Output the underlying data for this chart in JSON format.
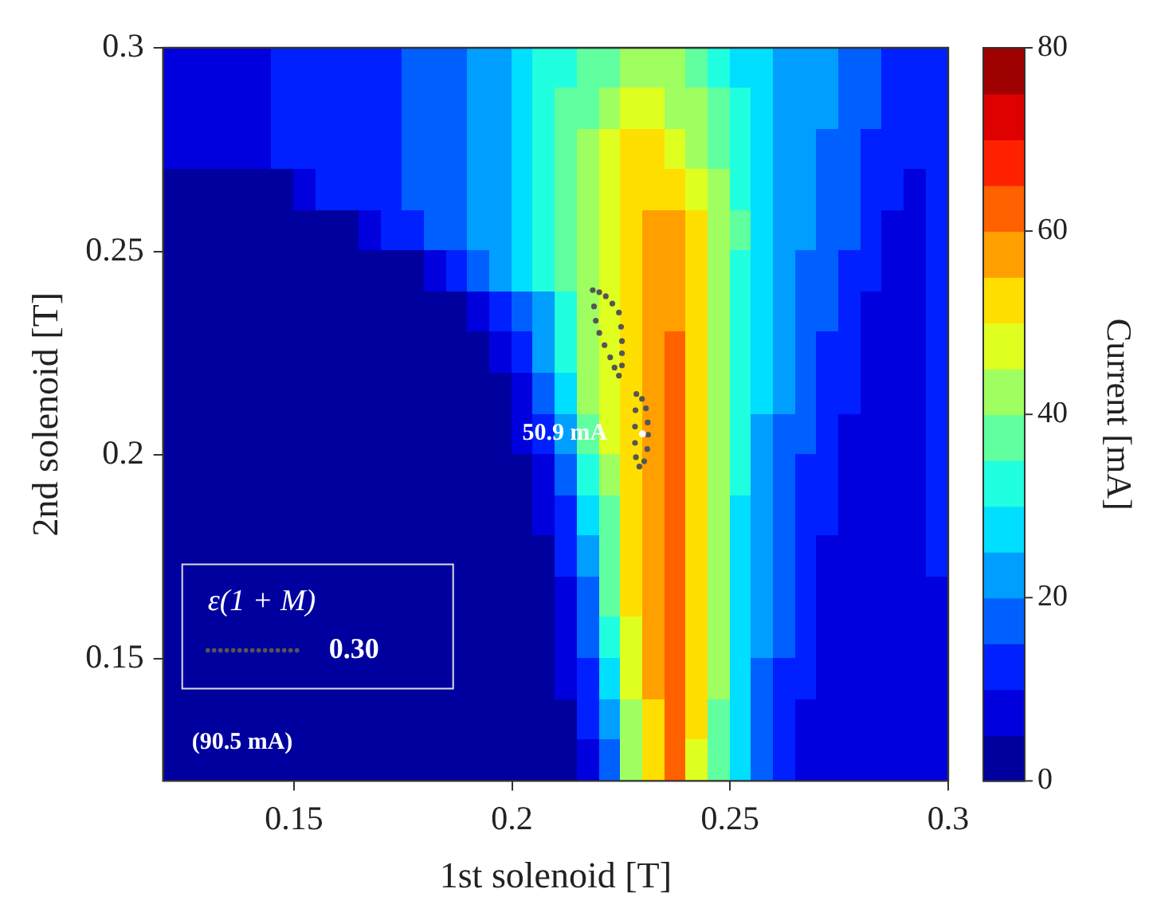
{
  "chart_data": {
    "type": "heatmap",
    "xlabel": "1st solenoid [T]",
    "ylabel": "2nd solenoid [T]",
    "clabel": "Current [mA]",
    "xlim": [
      0.12,
      0.3
    ],
    "ylim": [
      0.12,
      0.3
    ],
    "xticks": [
      0.15,
      0.2,
      0.25,
      0.3
    ],
    "yticks": [
      0.15,
      0.2,
      0.25,
      0.3
    ],
    "clim": [
      0,
      80
    ],
    "cticks": [
      0,
      20,
      40,
      60,
      80
    ],
    "cells": [
      [
        7.5,
        7.5,
        7.5,
        7.5,
        7.5,
        12.5,
        12.5,
        12.5,
        12.5,
        12.5,
        12.5,
        17.5,
        17.5,
        17.5,
        22.5,
        22.5,
        27.5,
        32.5,
        32.5,
        37.5,
        37.5,
        42.5,
        42.5,
        42.5,
        37.5,
        32.5,
        27.5,
        27.5,
        22.5,
        22.5,
        22.5,
        17.5,
        17.5,
        12.5,
        12.5,
        12.5
      ],
      [
        7.5,
        7.5,
        7.5,
        7.5,
        7.5,
        12.5,
        12.5,
        12.5,
        12.5,
        12.5,
        12.5,
        17.5,
        17.5,
        17.5,
        22.5,
        22.5,
        27.5,
        32.5,
        37.5,
        37.5,
        42.5,
        47.5,
        47.5,
        42.5,
        42.5,
        37.5,
        32.5,
        27.5,
        22.5,
        22.5,
        22.5,
        17.5,
        17.5,
        12.5,
        12.5,
        12.5
      ],
      [
        7.5,
        7.5,
        7.5,
        7.5,
        7.5,
        12.5,
        12.5,
        12.5,
        12.5,
        12.5,
        12.5,
        17.5,
        17.5,
        17.5,
        22.5,
        22.5,
        27.5,
        32.5,
        37.5,
        42.5,
        47.5,
        52.5,
        52.5,
        47.5,
        42.5,
        37.5,
        32.5,
        27.5,
        22.5,
        22.5,
        17.5,
        17.5,
        12.5,
        12.5,
        12.5,
        12.5
      ],
      [
        2.5,
        2.5,
        2.5,
        2.5,
        2.5,
        2.5,
        7.5,
        12.5,
        12.5,
        12.5,
        12.5,
        17.5,
        17.5,
        17.5,
        22.5,
        22.5,
        27.5,
        32.5,
        37.5,
        42.5,
        47.5,
        52.5,
        52.5,
        52.5,
        47.5,
        42.5,
        32.5,
        27.5,
        22.5,
        22.5,
        17.5,
        17.5,
        12.5,
        12.5,
        7.5,
        12.5
      ],
      [
        2.5,
        2.5,
        2.5,
        2.5,
        2.5,
        2.5,
        2.5,
        2.5,
        2.5,
        7.5,
        12.5,
        12.5,
        17.5,
        17.5,
        22.5,
        22.5,
        27.5,
        32.5,
        37.5,
        42.5,
        47.5,
        52.5,
        57.5,
        57.5,
        52.5,
        42.5,
        37.5,
        27.5,
        22.5,
        22.5,
        17.5,
        17.5,
        12.5,
        7.5,
        7.5,
        12.5
      ],
      [
        2.5,
        2.5,
        2.5,
        2.5,
        2.5,
        2.5,
        2.5,
        2.5,
        2.5,
        2.5,
        2.5,
        2.5,
        7.5,
        12.5,
        17.5,
        22.5,
        27.5,
        32.5,
        37.5,
        42.5,
        47.5,
        52.5,
        57.5,
        57.5,
        52.5,
        42.5,
        32.5,
        27.5,
        22.5,
        17.5,
        17.5,
        12.5,
        12.5,
        7.5,
        7.5,
        12.5
      ],
      [
        2.5,
        2.5,
        2.5,
        2.5,
        2.5,
        2.5,
        2.5,
        2.5,
        2.5,
        2.5,
        2.5,
        2.5,
        2.5,
        2.5,
        7.5,
        12.5,
        17.5,
        22.5,
        32.5,
        42.5,
        47.5,
        52.5,
        57.5,
        57.5,
        52.5,
        42.5,
        32.5,
        27.5,
        22.5,
        17.5,
        17.5,
        12.5,
        7.5,
        7.5,
        7.5,
        12.5
      ],
      [
        2.5,
        2.5,
        2.5,
        2.5,
        2.5,
        2.5,
        2.5,
        2.5,
        2.5,
        2.5,
        2.5,
        2.5,
        2.5,
        2.5,
        2.5,
        7.5,
        12.5,
        22.5,
        32.5,
        42.5,
        47.5,
        52.5,
        57.5,
        62.5,
        52.5,
        42.5,
        32.5,
        27.5,
        22.5,
        17.5,
        12.5,
        12.5,
        7.5,
        7.5,
        7.5,
        12.5
      ],
      [
        2.5,
        2.5,
        2.5,
        2.5,
        2.5,
        2.5,
        2.5,
        2.5,
        2.5,
        2.5,
        2.5,
        2.5,
        2.5,
        2.5,
        2.5,
        2.5,
        7.5,
        17.5,
        27.5,
        42.5,
        47.5,
        52.5,
        57.5,
        62.5,
        52.5,
        42.5,
        32.5,
        27.5,
        22.5,
        17.5,
        12.5,
        12.5,
        7.5,
        7.5,
        7.5,
        12.5
      ],
      [
        2.5,
        2.5,
        2.5,
        2.5,
        2.5,
        2.5,
        2.5,
        2.5,
        2.5,
        2.5,
        2.5,
        2.5,
        2.5,
        2.5,
        2.5,
        2.5,
        7.5,
        12.5,
        22.5,
        37.5,
        47.5,
        52.5,
        57.5,
        62.5,
        52.5,
        42.5,
        32.5,
        22.5,
        17.5,
        17.5,
        12.5,
        7.5,
        7.5,
        7.5,
        7.5,
        12.5
      ],
      [
        2.5,
        2.5,
        2.5,
        2.5,
        2.5,
        2.5,
        2.5,
        2.5,
        2.5,
        2.5,
        2.5,
        2.5,
        2.5,
        2.5,
        2.5,
        2.5,
        2.5,
        7.5,
        17.5,
        32.5,
        42.5,
        52.5,
        57.5,
        62.5,
        52.5,
        42.5,
        32.5,
        22.5,
        17.5,
        12.5,
        12.5,
        7.5,
        7.5,
        7.5,
        7.5,
        12.5
      ],
      [
        2.5,
        2.5,
        2.5,
        2.5,
        2.5,
        2.5,
        2.5,
        2.5,
        2.5,
        2.5,
        2.5,
        2.5,
        2.5,
        2.5,
        2.5,
        2.5,
        2.5,
        7.5,
        12.5,
        27.5,
        37.5,
        52.5,
        57.5,
        62.5,
        52.5,
        42.5,
        27.5,
        22.5,
        17.5,
        12.5,
        12.5,
        7.5,
        7.5,
        7.5,
        7.5,
        12.5
      ],
      [
        2.5,
        2.5,
        2.5,
        2.5,
        2.5,
        2.5,
        2.5,
        2.5,
        2.5,
        2.5,
        2.5,
        2.5,
        2.5,
        2.5,
        2.5,
        2.5,
        2.5,
        2.5,
        12.5,
        22.5,
        37.5,
        52.5,
        57.5,
        62.5,
        52.5,
        42.5,
        27.5,
        22.5,
        17.5,
        12.5,
        7.5,
        7.5,
        7.5,
        7.5,
        7.5,
        12.5
      ],
      [
        2.5,
        2.5,
        2.5,
        2.5,
        2.5,
        2.5,
        2.5,
        2.5,
        2.5,
        2.5,
        2.5,
        2.5,
        2.5,
        2.5,
        2.5,
        2.5,
        2.5,
        2.5,
        7.5,
        17.5,
        37.5,
        52.5,
        57.5,
        62.5,
        52.5,
        42.5,
        27.5,
        22.5,
        17.5,
        12.5,
        7.5,
        7.5,
        7.5,
        7.5,
        7.5,
        7.5
      ],
      [
        2.5,
        2.5,
        2.5,
        2.5,
        2.5,
        2.5,
        2.5,
        2.5,
        2.5,
        2.5,
        2.5,
        2.5,
        2.5,
        2.5,
        2.5,
        2.5,
        2.5,
        2.5,
        7.5,
        17.5,
        32.5,
        47.5,
        57.5,
        62.5,
        52.5,
        42.5,
        27.5,
        22.5,
        17.5,
        12.5,
        7.5,
        7.5,
        7.5,
        7.5,
        7.5,
        7.5
      ],
      [
        2.5,
        2.5,
        2.5,
        2.5,
        2.5,
        2.5,
        2.5,
        2.5,
        2.5,
        2.5,
        2.5,
        2.5,
        2.5,
        2.5,
        2.5,
        2.5,
        2.5,
        2.5,
        7.5,
        12.5,
        27.5,
        47.5,
        57.5,
        62.5,
        52.5,
        42.5,
        27.5,
        17.5,
        12.5,
        12.5,
        7.5,
        7.5,
        7.5,
        7.5,
        7.5,
        7.5
      ],
      [
        2.5,
        2.5,
        2.5,
        2.5,
        2.5,
        2.5,
        2.5,
        2.5,
        2.5,
        2.5,
        2.5,
        2.5,
        2.5,
        2.5,
        2.5,
        2.5,
        2.5,
        2.5,
        2.5,
        12.5,
        22.5,
        42.5,
        52.5,
        62.5,
        52.5,
        37.5,
        27.5,
        17.5,
        12.5,
        7.5,
        7.5,
        7.5,
        7.5,
        7.5,
        7.5,
        7.5
      ],
      [
        2.5,
        2.5,
        2.5,
        2.5,
        2.5,
        2.5,
        2.5,
        2.5,
        2.5,
        2.5,
        2.5,
        2.5,
        2.5,
        2.5,
        2.5,
        2.5,
        2.5,
        2.5,
        2.5,
        7.5,
        17.5,
        42.5,
        52.5,
        62.5,
        47.5,
        37.5,
        27.5,
        17.5,
        12.5,
        7.5,
        7.5,
        7.5,
        7.5,
        7.5,
        7.5,
        7.5
      ]
    ],
    "legend": "bottom left",
    "marker": "circle",
    "legend_title": "ε(1 + M)",
    "series": [
      {
        "type": "scatter",
        "name": "0.30",
        "color": "#555555",
        "x": [
          0.2185,
          0.22,
          0.2215,
          0.223,
          0.2245,
          0.225,
          0.2252,
          0.2252,
          0.2252,
          0.2245,
          0.2235,
          0.2225,
          0.2212,
          0.22,
          0.2192,
          0.2188
        ],
        "values": [
          0.2405,
          0.24,
          0.239,
          0.2372,
          0.235,
          0.2315,
          0.228,
          0.225,
          0.222,
          0.2195,
          0.2215,
          0.224,
          0.227,
          0.23,
          0.233,
          0.2365
        ]
      },
      {
        "type": "scatter",
        "color": "#555555",
        "x": [
          0.2285,
          0.2298,
          0.2307,
          0.2311,
          0.2312,
          0.231,
          0.2303,
          0.2292,
          0.2284,
          0.2282,
          0.2282,
          0.2283
        ],
        "values": [
          0.215,
          0.2138,
          0.2115,
          0.208,
          0.205,
          0.2015,
          0.1985,
          0.1972,
          0.1995,
          0.203,
          0.207,
          0.211
        ]
      }
    ],
    "annotations": [
      "(90.5 mA)",
      {
        "text": "50.9 mA",
        "x": 0.2299,
        "y": 0.2052
      }
    ]
  }
}
